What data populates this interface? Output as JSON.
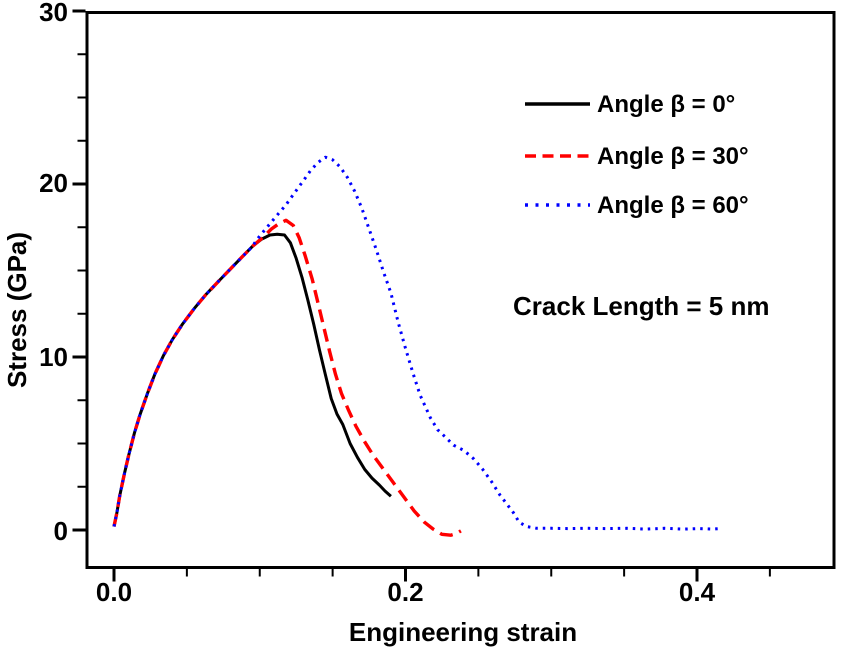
{
  "chart_data": {
    "type": "line",
    "title": "",
    "xlabel": "Engineering strain",
    "ylabel": "Stress (GPa)",
    "xlim": [
      -0.02,
      0.493
    ],
    "ylim": [
      -2.25,
      30
    ],
    "grid": false,
    "legend_position": "upper right inside",
    "x_tick_labels": [
      "0.0",
      "0.2",
      "0.4"
    ],
    "y_tick_labels": [
      "0",
      "10",
      "20",
      "30"
    ],
    "x_major_ticks": [
      0.0,
      0.2,
      0.4
    ],
    "x_minor_ticks": [
      0.05,
      0.1,
      0.15,
      0.25,
      0.3,
      0.35,
      0.45
    ],
    "y_major_ticks": [
      0,
      10,
      20,
      30
    ],
    "y_minor_ticks": [
      2.5,
      5,
      7.5,
      12.5,
      15,
      17.5,
      22.5,
      25,
      27.5
    ],
    "annotation": "Crack Length = 5 nm",
    "colors": {
      "series_black": "#000000",
      "series_red": "#ff0000",
      "series_blue": "#0000ff"
    },
    "legend": [
      {
        "label": "Angle β = 0°",
        "color": "#000000",
        "style": "solid"
      },
      {
        "label": "Angle β = 30°",
        "color": "#ff0000",
        "style": "dashed"
      },
      {
        "label": "Angle β = 60°",
        "color": "#0000ff",
        "style": "dotted"
      }
    ],
    "series": [
      {
        "id": "angle-0",
        "name": "Angle β = 0°",
        "color": "#000000",
        "style": "solid",
        "width": 3,
        "points": [
          [
            0.0,
            0.2
          ],
          [
            0.002,
            1.0
          ],
          [
            0.004,
            2.0
          ],
          [
            0.007,
            3.2
          ],
          [
            0.01,
            4.3
          ],
          [
            0.014,
            5.6
          ],
          [
            0.018,
            6.7
          ],
          [
            0.023,
            7.9
          ],
          [
            0.028,
            9.0
          ],
          [
            0.034,
            10.1
          ],
          [
            0.04,
            11.0
          ],
          [
            0.047,
            11.9
          ],
          [
            0.055,
            12.8
          ],
          [
            0.063,
            13.6
          ],
          [
            0.072,
            14.4
          ],
          [
            0.08,
            15.1
          ],
          [
            0.088,
            15.8
          ],
          [
            0.095,
            16.4
          ],
          [
            0.101,
            16.8
          ],
          [
            0.107,
            17.05
          ],
          [
            0.112,
            17.1
          ],
          [
            0.117,
            17.05
          ],
          [
            0.121,
            16.6
          ],
          [
            0.125,
            15.7
          ],
          [
            0.129,
            14.6
          ],
          [
            0.133,
            13.3
          ],
          [
            0.137,
            11.9
          ],
          [
            0.141,
            10.4
          ],
          [
            0.145,
            9.0
          ],
          [
            0.149,
            7.6
          ],
          [
            0.153,
            6.7
          ],
          [
            0.157,
            6.1
          ],
          [
            0.162,
            5.0
          ],
          [
            0.167,
            4.2
          ],
          [
            0.172,
            3.5
          ],
          [
            0.177,
            3.0
          ],
          [
            0.182,
            2.6
          ],
          [
            0.186,
            2.25
          ],
          [
            0.19,
            1.95
          ]
        ]
      },
      {
        "id": "angle-30",
        "name": "Angle β = 30°",
        "color": "#ff0000",
        "style": "dashed",
        "width": 3.4,
        "points": [
          [
            0.0,
            0.2
          ],
          [
            0.002,
            1.0
          ],
          [
            0.004,
            2.0
          ],
          [
            0.007,
            3.2
          ],
          [
            0.01,
            4.3
          ],
          [
            0.014,
            5.6
          ],
          [
            0.018,
            6.7
          ],
          [
            0.023,
            7.9
          ],
          [
            0.028,
            9.0
          ],
          [
            0.034,
            10.1
          ],
          [
            0.04,
            11.0
          ],
          [
            0.047,
            11.9
          ],
          [
            0.055,
            12.8
          ],
          [
            0.063,
            13.6
          ],
          [
            0.072,
            14.4
          ],
          [
            0.08,
            15.1
          ],
          [
            0.088,
            15.8
          ],
          [
            0.095,
            16.4
          ],
          [
            0.102,
            16.9
          ],
          [
            0.108,
            17.4
          ],
          [
            0.113,
            17.7
          ],
          [
            0.118,
            17.9
          ],
          [
            0.123,
            17.6
          ],
          [
            0.127,
            16.9
          ],
          [
            0.131,
            15.9
          ],
          [
            0.136,
            14.5
          ],
          [
            0.14,
            13.1
          ],
          [
            0.144,
            11.7
          ],
          [
            0.148,
            10.3
          ],
          [
            0.152,
            9.0
          ],
          [
            0.156,
            7.9
          ],
          [
            0.161,
            6.9
          ],
          [
            0.166,
            6.0
          ],
          [
            0.172,
            5.1
          ],
          [
            0.178,
            4.3
          ],
          [
            0.185,
            3.5
          ],
          [
            0.192,
            2.7
          ],
          [
            0.199,
            1.9
          ],
          [
            0.206,
            1.1
          ],
          [
            0.213,
            0.45
          ],
          [
            0.219,
            0.05
          ],
          [
            0.225,
            -0.25
          ],
          [
            0.231,
            -0.3
          ],
          [
            0.235,
            -0.2
          ],
          [
            0.238,
            -0.05
          ]
        ]
      },
      {
        "id": "angle-60",
        "name": "Angle β = 60°",
        "color": "#0000ff",
        "style": "dotted",
        "width": 3,
        "points": [
          [
            0.0,
            0.2
          ],
          [
            0.002,
            1.0
          ],
          [
            0.004,
            2.0
          ],
          [
            0.007,
            3.2
          ],
          [
            0.01,
            4.3
          ],
          [
            0.014,
            5.6
          ],
          [
            0.018,
            6.7
          ],
          [
            0.023,
            7.9
          ],
          [
            0.028,
            9.0
          ],
          [
            0.034,
            10.1
          ],
          [
            0.04,
            11.0
          ],
          [
            0.047,
            11.9
          ],
          [
            0.055,
            12.8
          ],
          [
            0.063,
            13.6
          ],
          [
            0.072,
            14.4
          ],
          [
            0.08,
            15.1
          ],
          [
            0.088,
            15.8
          ],
          [
            0.094,
            16.3
          ],
          [
            0.1,
            17.0
          ],
          [
            0.106,
            17.6
          ],
          [
            0.112,
            18.2
          ],
          [
            0.118,
            18.8
          ],
          [
            0.124,
            19.5
          ],
          [
            0.13,
            20.2
          ],
          [
            0.135,
            20.8
          ],
          [
            0.14,
            21.25
          ],
          [
            0.145,
            21.55
          ],
          [
            0.15,
            21.4
          ],
          [
            0.155,
            21.0
          ],
          [
            0.16,
            20.4
          ],
          [
            0.165,
            19.6
          ],
          [
            0.17,
            18.6
          ],
          [
            0.175,
            17.4
          ],
          [
            0.18,
            16.2
          ],
          [
            0.185,
            14.9
          ],
          [
            0.19,
            13.7
          ],
          [
            0.195,
            12.0
          ],
          [
            0.2,
            10.5
          ],
          [
            0.205,
            9.1
          ],
          [
            0.21,
            7.8
          ],
          [
            0.217,
            6.5
          ],
          [
            0.222,
            5.8
          ],
          [
            0.227,
            5.4
          ],
          [
            0.233,
            4.9
          ],
          [
            0.24,
            4.6
          ],
          [
            0.247,
            4.1
          ],
          [
            0.253,
            3.5
          ],
          [
            0.259,
            2.8
          ],
          [
            0.265,
            2.0
          ],
          [
            0.27,
            1.45
          ],
          [
            0.274,
            1.0
          ],
          [
            0.278,
            0.45
          ],
          [
            0.283,
            0.2
          ],
          [
            0.29,
            0.1
          ],
          [
            0.3,
            0.1
          ],
          [
            0.312,
            0.08
          ],
          [
            0.325,
            0.1
          ],
          [
            0.338,
            0.08
          ],
          [
            0.352,
            0.1
          ],
          [
            0.365,
            0.05
          ],
          [
            0.378,
            0.1
          ],
          [
            0.39,
            0.05
          ],
          [
            0.402,
            0.08
          ],
          [
            0.41,
            0.05
          ],
          [
            0.416,
            0.08
          ]
        ]
      }
    ]
  }
}
